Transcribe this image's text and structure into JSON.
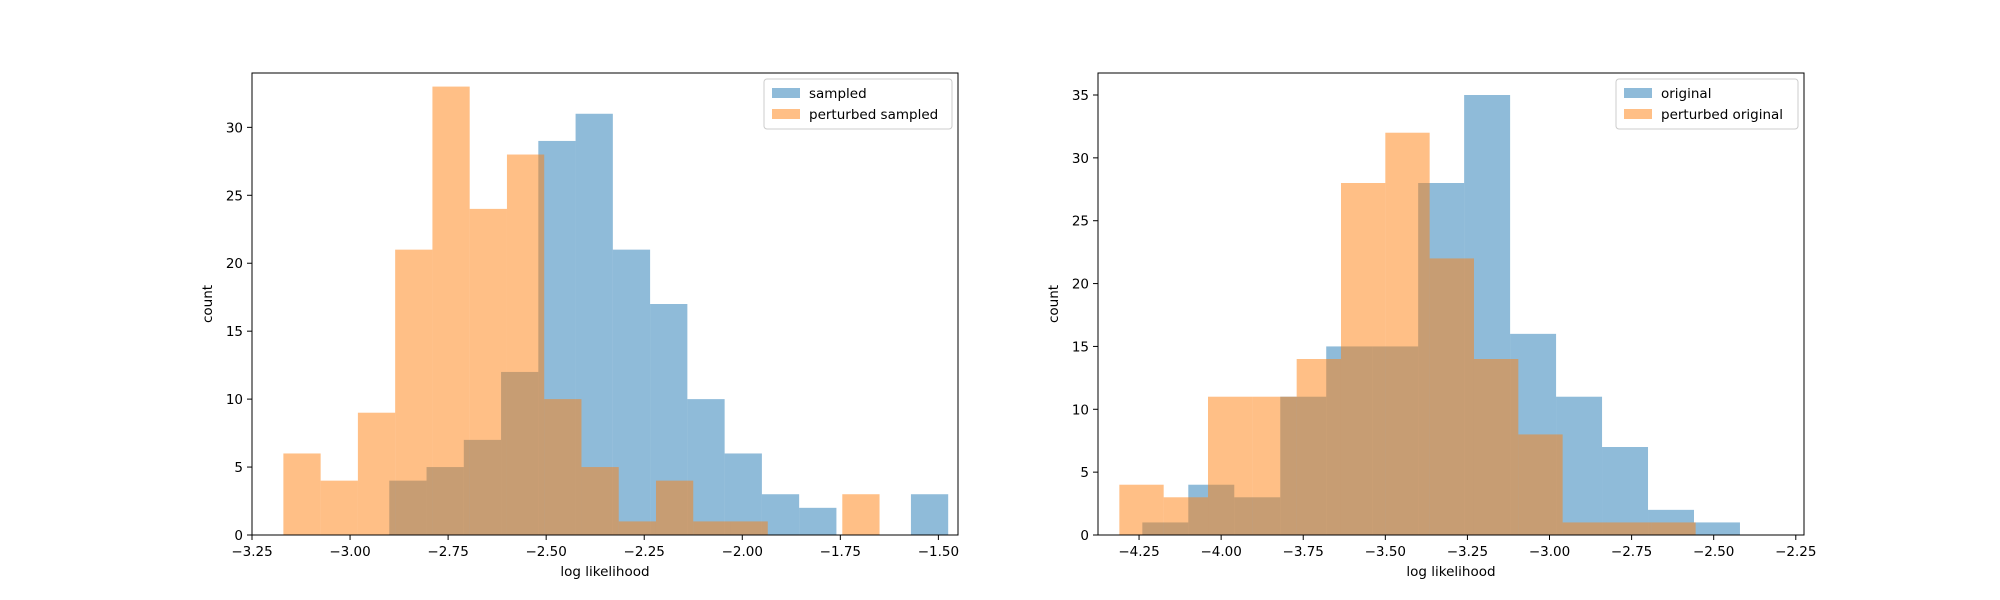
{
  "chart_data": [
    {
      "type": "bar",
      "histogram": true,
      "xlabel": "log likelihood",
      "ylabel": "count",
      "xlim": [
        -3.25,
        -1.45
      ],
      "ylim": [
        0,
        34
      ],
      "xticks": [
        -3.25,
        -3.0,
        -2.75,
        -2.5,
        -2.25,
        -2.0,
        -1.75,
        -1.5
      ],
      "xtick_labels": [
        "−3.25",
        "−3.00",
        "−2.75",
        "−2.50",
        "−2.25",
        "−2.00",
        "−1.75",
        "−1.50"
      ],
      "yticks": [
        0,
        5,
        10,
        15,
        20,
        25,
        30
      ],
      "ytick_labels": [
        "0",
        "5",
        "10",
        "15",
        "20",
        "25",
        "30"
      ],
      "legend_position": "top-right",
      "series": [
        {
          "name": "sampled",
          "color": "#1f77b4",
          "alpha": 0.5,
          "bin_edges": [
            -2.9,
            -2.805,
            -2.71,
            -2.615,
            -2.52,
            -2.425,
            -2.33,
            -2.235,
            -2.14,
            -2.045,
            -1.95,
            -1.855,
            -1.76,
            -1.665,
            -1.57,
            -1.475
          ],
          "counts": [
            4,
            5,
            7,
            12,
            29,
            31,
            21,
            17,
            10,
            6,
            3,
            2,
            0,
            0,
            3
          ]
        },
        {
          "name": "perturbed sampled",
          "color": "#ff7f0e",
          "alpha": 0.5,
          "bin_edges": [
            -3.17,
            -3.075,
            -2.98,
            -2.885,
            -2.79,
            -2.695,
            -2.6,
            -2.505,
            -2.41,
            -2.315,
            -2.22,
            -2.125,
            -2.03,
            -1.935,
            -1.84,
            -1.745,
            -1.65,
            -1.555
          ],
          "counts": [
            6,
            4,
            9,
            21,
            33,
            24,
            28,
            10,
            5,
            1,
            4,
            1,
            1,
            0,
            0,
            3,
            0
          ]
        }
      ]
    },
    {
      "type": "bar",
      "histogram": true,
      "xlabel": "log likelihood",
      "ylabel": "count",
      "xlim": [
        -4.375,
        -2.225
      ],
      "ylim": [
        0,
        36.75
      ],
      "xticks": [
        -4.25,
        -4.0,
        -3.75,
        -3.5,
        -3.25,
        -3.0,
        -2.75,
        -2.5,
        -2.25
      ],
      "xtick_labels": [
        "−4.25",
        "−4.00",
        "−3.75",
        "−3.50",
        "−3.25",
        "−3.00",
        "−2.75",
        "−2.50",
        "−2.25"
      ],
      "yticks": [
        0,
        5,
        10,
        15,
        20,
        25,
        30,
        35
      ],
      "ytick_labels": [
        "0",
        "5",
        "10",
        "15",
        "20",
        "25",
        "30",
        "35"
      ],
      "legend_position": "top-right",
      "series": [
        {
          "name": "original",
          "color": "#1f77b4",
          "alpha": 0.5,
          "bin_edges": [
            -4.24,
            -4.1,
            -3.96,
            -3.82,
            -3.68,
            -3.54,
            -3.4,
            -3.26,
            -3.12,
            -2.98,
            -2.84,
            -2.7,
            -2.56,
            -2.42,
            -2.28
          ],
          "counts": [
            1,
            4,
            3,
            11,
            15,
            15,
            28,
            35,
            16,
            11,
            7,
            2,
            1,
            0
          ]
        },
        {
          "name": "perturbed original",
          "color": "#ff7f0e",
          "alpha": 0.5,
          "bin_edges": [
            -4.31,
            -4.175,
            -4.04,
            -3.905,
            -3.77,
            -3.635,
            -3.5,
            -3.365,
            -3.23,
            -3.095,
            -2.96,
            -2.825,
            -2.69,
            -2.555
          ],
          "counts": [
            4,
            3,
            11,
            11,
            14,
            28,
            32,
            22,
            14,
            8,
            1,
            1,
            1
          ]
        }
      ]
    }
  ]
}
